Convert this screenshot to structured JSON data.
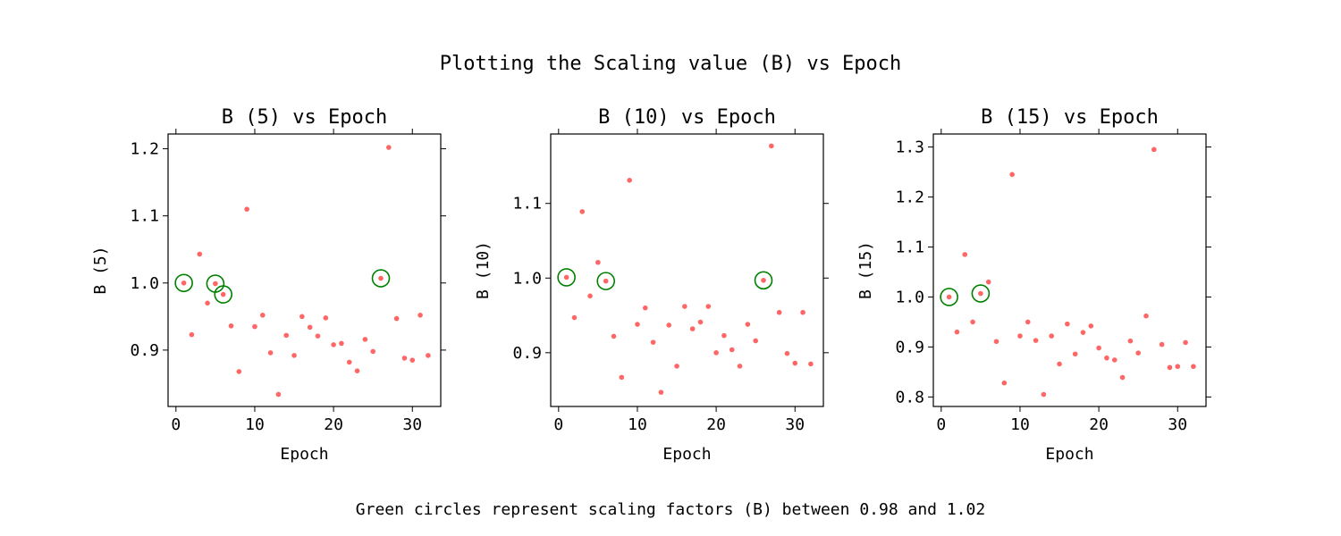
{
  "suptitle": "Plotting the Scaling value (B) vs Epoch",
  "caption": "Green circles represent scaling factors (B) between 0.98 and 1.02",
  "colors": {
    "points": "#ff6666",
    "highlight": "#008000",
    "axes": "#000000"
  },
  "highlight_range": [
    0.98,
    1.02
  ],
  "chart_data": [
    {
      "type": "scatter",
      "title": "B (5) vs Epoch",
      "xlabel": "Epoch",
      "ylabel": "B (5)",
      "xlim": [
        -1,
        33.6
      ],
      "ylim": [
        0.816,
        1.222
      ],
      "xticks": [
        0,
        10,
        20,
        30
      ],
      "yticks": [
        0.9,
        1.0,
        1.1,
        1.2
      ],
      "ytick_labels": [
        "0.9",
        "1.0",
        "1.1",
        "1.2"
      ],
      "x": [
        1,
        2,
        3,
        4,
        5,
        6,
        7,
        8,
        9,
        10,
        11,
        12,
        13,
        14,
        15,
        16,
        17,
        18,
        19,
        20,
        21,
        22,
        23,
        24,
        25,
        26,
        27,
        28,
        29,
        30,
        31,
        32
      ],
      "y": [
        1.0,
        0.923,
        1.043,
        0.97,
        0.999,
        0.983,
        0.936,
        0.868,
        1.11,
        0.935,
        0.952,
        0.896,
        0.834,
        0.922,
        0.892,
        0.95,
        0.934,
        0.921,
        0.948,
        0.908,
        0.91,
        0.882,
        0.869,
        0.916,
        0.898,
        1.007,
        1.202,
        0.947,
        0.888,
        0.885,
        0.952,
        0.892
      ],
      "highlighted_x": [
        1,
        5,
        6,
        26
      ]
    },
    {
      "type": "scatter",
      "title": "B (10) vs Epoch",
      "xlabel": "Epoch",
      "ylabel": "B (10)",
      "xlim": [
        -1,
        33.6
      ],
      "ylim": [
        0.828,
        1.193
      ],
      "xticks": [
        0,
        10,
        20,
        30
      ],
      "yticks": [
        0.9,
        1.0,
        1.1
      ],
      "ytick_labels": [
        "0.9",
        "1.0",
        "1.1"
      ],
      "x": [
        1,
        2,
        3,
        4,
        5,
        6,
        7,
        8,
        9,
        10,
        11,
        12,
        13,
        14,
        15,
        16,
        17,
        18,
        19,
        20,
        21,
        22,
        23,
        24,
        25,
        26,
        27,
        28,
        29,
        30,
        31,
        32
      ],
      "y": [
        1.001,
        0.947,
        1.089,
        0.976,
        1.021,
        0.996,
        0.922,
        0.867,
        1.131,
        0.938,
        0.96,
        0.914,
        0.847,
        0.937,
        0.882,
        0.962,
        0.932,
        0.941,
        0.962,
        0.9,
        0.923,
        0.904,
        0.882,
        0.938,
        0.916,
        0.997,
        1.177,
        0.954,
        0.899,
        0.886,
        0.954,
        0.885
      ],
      "highlighted_x": [
        1,
        6,
        26
      ]
    },
    {
      "type": "scatter",
      "title": "B (15) vs Epoch",
      "xlabel": "Epoch",
      "ylabel": "B (15)",
      "xlim": [
        -1,
        33.6
      ],
      "ylim": [
        0.781,
        1.326
      ],
      "xticks": [
        0,
        10,
        20,
        30
      ],
      "yticks": [
        0.8,
        0.9,
        1.0,
        1.1,
        1.2,
        1.3
      ],
      "ytick_labels": [
        "0.8",
        "0.9",
        "1.0",
        "1.1",
        "1.2",
        "1.3"
      ],
      "x": [
        1,
        2,
        3,
        4,
        5,
        6,
        7,
        8,
        9,
        10,
        11,
        12,
        13,
        14,
        15,
        16,
        17,
        18,
        19,
        20,
        21,
        22,
        23,
        24,
        25,
        26,
        27,
        28,
        29,
        30,
        31,
        32
      ],
      "y": [
        1.0,
        0.93,
        1.085,
        0.95,
        1.007,
        1.03,
        0.911,
        0.828,
        1.245,
        0.922,
        0.95,
        0.913,
        0.805,
        0.922,
        0.866,
        0.946,
        0.886,
        0.929,
        0.942,
        0.898,
        0.878,
        0.874,
        0.839,
        0.912,
        0.888,
        0.962,
        1.295,
        0.905,
        0.859,
        0.861,
        0.909,
        0.861
      ],
      "highlighted_x": [
        1,
        5
      ]
    }
  ]
}
